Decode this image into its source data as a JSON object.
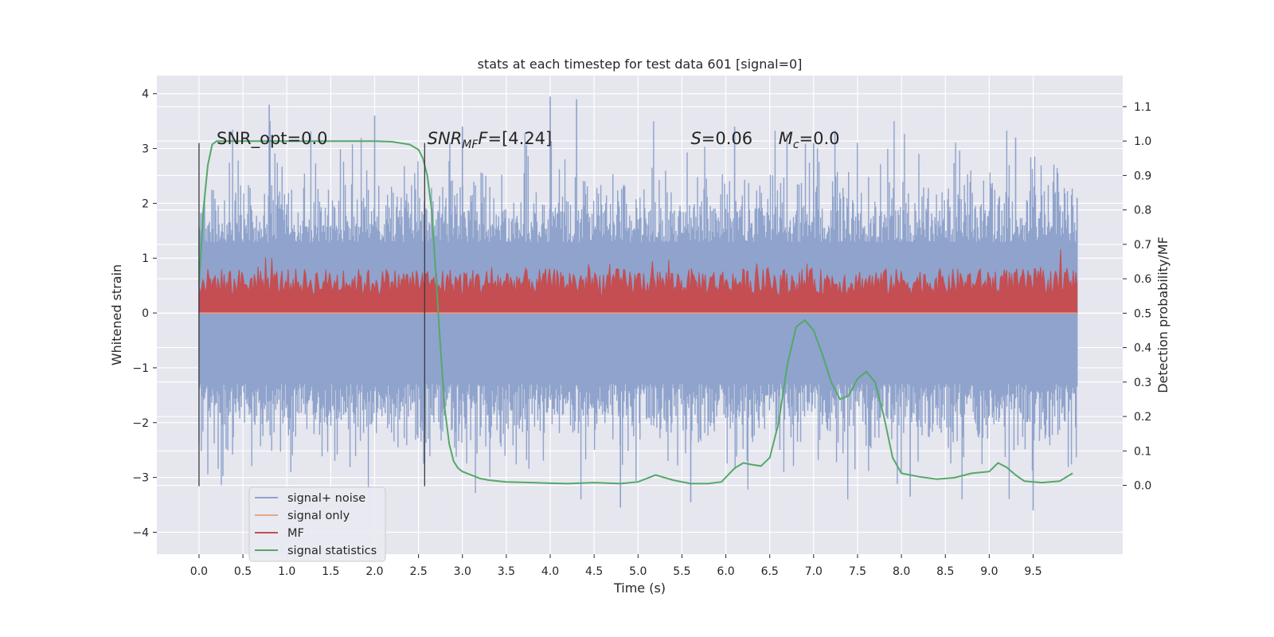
{
  "chart_data": {
    "type": "line",
    "title": "stats at each timestep for test data 601 [signal=0]",
    "xlabel": "Time (s)",
    "ylabel": "Whitened strain",
    "ylabel_right": "Detection probability/MF",
    "xlim": [
      -0.48,
      10.52
    ],
    "ylim": [
      -4.4,
      4.33
    ],
    "ylim_right": [
      -0.2,
      1.19
    ],
    "x_ticks": [
      "0.0",
      "0.5",
      "1.0",
      "1.5",
      "2.0",
      "2.5",
      "3.0",
      "3.5",
      "4.0",
      "4.5",
      "5.0",
      "5.5",
      "6.0",
      "6.5",
      "7.0",
      "7.5",
      "8.0",
      "8.5",
      "9.0",
      "9.5"
    ],
    "y_ticks": [
      "4",
      "3",
      "2",
      "1",
      "0",
      "−1",
      "−2",
      "−3",
      "−4"
    ],
    "y_ticks_right": [
      "1.1",
      "1.0",
      "0.9",
      "0.8",
      "0.7",
      "0.6",
      "0.5",
      "0.4",
      "0.3",
      "0.2",
      "0.1",
      "0.0"
    ],
    "annotations": {
      "snr_opt": "SNR_opt=0.0",
      "snr_mf_prefix": "SNR",
      "snr_mf_sub": "MF",
      "snr_mf_suffix": "=[4.24]",
      "s_prefix": "S",
      "s_suffix": "=0.06",
      "mc_prefix": "M",
      "mc_sub": "c",
      "mc_suffix": "=0.0"
    },
    "vertical_lines_x": [
      0.0,
      2.57
    ],
    "vertical_lines_range": [
      -3.16,
      3.1
    ],
    "legend_position": "lower-left",
    "series": [
      {
        "name": "signal+ noise",
        "axis": "left",
        "color": "#8fa3cc",
        "note_envelope": "random noise roughly ±1.3 with spikes up to ±3.9 over 0–10 s",
        "envelope_sample_t": [
          0.0,
          0.8,
          2.0,
          3.0,
          4.0,
          4.3,
          4.8,
          5.6,
          6.1,
          7.0,
          8.1,
          9.3,
          9.5,
          10.0
        ],
        "envelope_sample_peak": [
          1.3,
          3.8,
          3.6,
          3.4,
          3.95,
          3.9,
          -3.55,
          -3.45,
          3.4,
          3.1,
          -3.35,
          3.2,
          -3.6,
          2.1
        ]
      },
      {
        "name": "signal only",
        "axis": "left",
        "color": "#e8a58a",
        "x": [
          0.0,
          10.0
        ],
        "y": [
          0.0,
          0.0
        ]
      },
      {
        "name": "MF",
        "axis": "right",
        "color": "#c44e52",
        "note_envelope": "filled band from 0.5 up to about 0.55–0.68, occasional spikes near 0.71"
      },
      {
        "name": "signal statistics",
        "axis": "right",
        "color": "#55a868",
        "x": [
          0.0,
          0.05,
          0.1,
          0.15,
          0.2,
          0.3,
          0.5,
          1.0,
          1.5,
          2.0,
          2.2,
          2.4,
          2.5,
          2.55,
          2.6,
          2.65,
          2.7,
          2.75,
          2.8,
          2.85,
          2.9,
          2.95,
          3.0,
          3.1,
          3.2,
          3.3,
          3.5,
          3.8,
          4.0,
          4.2,
          4.5,
          4.8,
          5.0,
          5.2,
          5.4,
          5.6,
          5.8,
          5.95,
          6.1,
          6.2,
          6.3,
          6.4,
          6.5,
          6.6,
          6.7,
          6.8,
          6.9,
          7.0,
          7.1,
          7.2,
          7.3,
          7.4,
          7.5,
          7.6,
          7.7,
          7.8,
          7.9,
          8.0,
          8.2,
          8.4,
          8.6,
          8.8,
          9.0,
          9.1,
          9.2,
          9.3,
          9.4,
          9.6,
          9.8,
          9.95
        ],
        "y": [
          0.58,
          0.8,
          0.93,
          0.99,
          1.0,
          1.0,
          1.0,
          1.0,
          1.0,
          1.0,
          0.998,
          0.99,
          0.975,
          0.95,
          0.9,
          0.8,
          0.6,
          0.4,
          0.22,
          0.12,
          0.07,
          0.05,
          0.04,
          0.03,
          0.02,
          0.015,
          0.01,
          0.008,
          0.006,
          0.005,
          0.008,
          0.005,
          0.01,
          0.03,
          0.015,
          0.005,
          0.005,
          0.01,
          0.05,
          0.065,
          0.06,
          0.056,
          0.08,
          0.18,
          0.35,
          0.46,
          0.48,
          0.45,
          0.38,
          0.3,
          0.25,
          0.26,
          0.31,
          0.33,
          0.3,
          0.2,
          0.08,
          0.035,
          0.025,
          0.018,
          0.022,
          0.035,
          0.04,
          0.065,
          0.052,
          0.03,
          0.012,
          0.008,
          0.012,
          0.035
        ]
      }
    ]
  }
}
